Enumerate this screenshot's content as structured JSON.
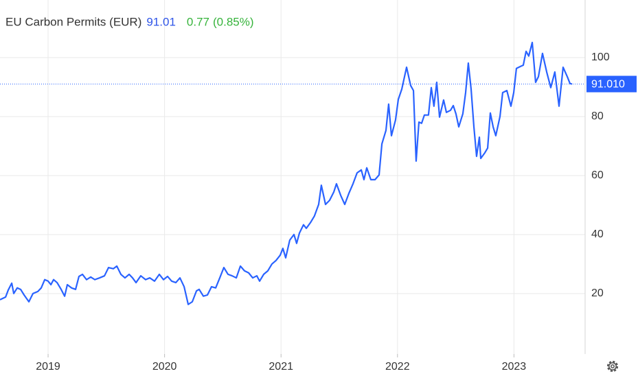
{
  "chart_data": {
    "type": "line",
    "title": "EU Carbon Permits (EUR)",
    "price": 91.01,
    "change": 0.77,
    "change_percent": {
      "value": 0.85,
      "label": "(0.85%)"
    },
    "last_price": {
      "value": 91.01,
      "label": "91.010"
    },
    "color": "#2962ff",
    "price_color": "#2e54e8",
    "change_color": "#36b33b",
    "grid": true,
    "xlim": [
      2018.587,
      2023.611
    ],
    "ylim": [
      -0.5,
      119.5
    ],
    "xticks": [
      2019,
      2020,
      2021,
      2022,
      2023
    ],
    "yticks": [
      20,
      40,
      60,
      80,
      100
    ],
    "x": [
      2018.587,
      2018.635,
      2018.658,
      2018.688,
      2018.705,
      2018.735,
      2018.764,
      2018.794,
      2018.835,
      2018.87,
      2018.912,
      2018.941,
      2018.971,
      2019.0,
      2019.024,
      2019.047,
      2019.077,
      2019.112,
      2019.142,
      2019.165,
      2019.201,
      2019.236,
      2019.265,
      2019.295,
      2019.33,
      2019.366,
      2019.401,
      2019.442,
      2019.484,
      2019.519,
      2019.56,
      2019.59,
      2019.625,
      2019.66,
      2019.696,
      2019.725,
      2019.755,
      2019.796,
      2019.837,
      2019.873,
      2019.914,
      2019.955,
      2019.991,
      2020.026,
      2020.061,
      2020.097,
      2020.132,
      2020.168,
      2020.203,
      2020.238,
      2020.274,
      2020.297,
      2020.333,
      2020.368,
      2020.403,
      2020.439,
      2020.474,
      2020.509,
      2020.545,
      2020.58,
      2020.616,
      2020.651,
      2020.686,
      2020.722,
      2020.757,
      2020.792,
      2020.816,
      2020.851,
      2020.887,
      2020.922,
      2020.957,
      2020.993,
      2021.016,
      2021.04,
      2021.075,
      2021.111,
      2021.134,
      2021.158,
      2021.193,
      2021.217,
      2021.252,
      2021.287,
      2021.323,
      2021.346,
      2021.382,
      2021.417,
      2021.453,
      2021.476,
      2021.512,
      2021.547,
      2021.582,
      2021.618,
      2021.653,
      2021.689,
      2021.712,
      2021.736,
      2021.771,
      2021.807,
      2021.842,
      2021.866,
      2021.901,
      2021.924,
      2021.948,
      2021.983,
      2022.007,
      2022.037,
      2022.078,
      2022.113,
      2022.137,
      2022.16,
      2022.184,
      2022.207,
      2022.231,
      2022.266,
      2022.29,
      2022.313,
      2022.337,
      2022.361,
      2022.396,
      2022.42,
      2022.455,
      2022.479,
      2022.502,
      2022.526,
      2022.561,
      2022.585,
      2022.608,
      2022.632,
      2022.656,
      2022.679,
      2022.703,
      2022.715,
      2022.75,
      2022.774,
      2022.797,
      2022.821,
      2022.844,
      2022.88,
      2022.903,
      2022.939,
      2022.974,
      2022.998,
      2023.021,
      2023.057,
      2023.08,
      2023.104,
      2023.127,
      2023.157,
      2023.186,
      2023.21,
      2023.245,
      2023.281,
      2023.316,
      2023.351,
      2023.387,
      2023.422,
      2023.458,
      2023.481,
      2023.499
    ],
    "values": [
      17.9,
      18.8,
      21.2,
      23.5,
      20.0,
      21.9,
      21.4,
      19.5,
      17.2,
      20.0,
      20.7,
      21.9,
      24.7,
      24.2,
      23.0,
      24.7,
      23.7,
      21.4,
      19.1,
      23.0,
      21.9,
      21.4,
      25.8,
      26.5,
      24.7,
      25.6,
      24.7,
      25.3,
      26.0,
      28.8,
      28.4,
      29.3,
      26.5,
      25.3,
      26.5,
      25.3,
      23.7,
      26.0,
      24.7,
      25.3,
      24.2,
      26.5,
      24.7,
      25.8,
      24.2,
      23.7,
      25.3,
      22.3,
      16.3,
      17.2,
      20.9,
      21.4,
      19.1,
      19.5,
      22.3,
      21.9,
      25.3,
      28.8,
      26.5,
      26.0,
      25.3,
      29.3,
      27.7,
      27.0,
      25.3,
      26.0,
      24.2,
      26.5,
      27.7,
      30.0,
      31.2,
      33.0,
      35.3,
      32.1,
      38.1,
      40.0,
      37.0,
      40.5,
      43.3,
      42.1,
      44.0,
      46.3,
      50.2,
      56.7,
      50.2,
      51.6,
      54.4,
      57.2,
      53.3,
      50.2,
      53.9,
      57.2,
      60.9,
      61.9,
      58.6,
      62.6,
      58.6,
      58.6,
      60.2,
      70.7,
      75.3,
      84.2,
      73.5,
      78.8,
      85.8,
      89.3,
      96.7,
      90.5,
      88.8,
      64.9,
      78.1,
      77.7,
      80.5,
      80.5,
      89.8,
      83.5,
      91.6,
      79.8,
      85.6,
      81.4,
      82.1,
      83.7,
      80.9,
      76.5,
      80.9,
      88.1,
      98.1,
      89.3,
      76.5,
      66.5,
      73.0,
      65.8,
      67.7,
      69.3,
      81.2,
      76.5,
      73.5,
      80.0,
      88.1,
      88.8,
      83.5,
      88.1,
      96.3,
      97.0,
      97.4,
      102.1,
      100.5,
      105.1,
      91.6,
      93.5,
      101.4,
      95.1,
      89.8,
      95.1,
      83.5,
      96.7,
      93.5,
      91.2,
      91.01
    ]
  }
}
